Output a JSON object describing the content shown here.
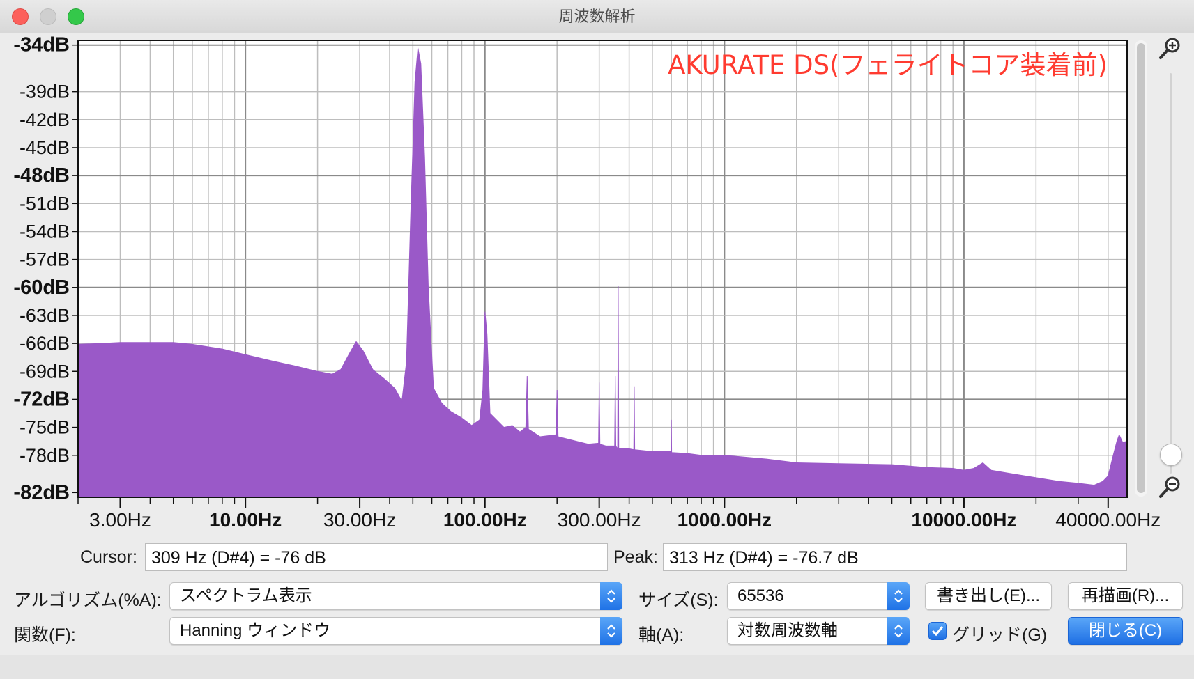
{
  "window": {
    "title": "周波数解析"
  },
  "chart_data": {
    "type": "area",
    "title": "AKURATE DS(フェライトコア装着前)",
    "title_color": "#ff3b30",
    "fill_color": "#9a59c8",
    "x_scale": "log",
    "xlim": [
      2.0,
      48000
    ],
    "ylim": [
      -82.5,
      -33.5
    ],
    "y_ticks": [
      {
        "value": -34,
        "label": "-34dB",
        "major": true
      },
      {
        "value": -39,
        "label": "-39dB",
        "major": false
      },
      {
        "value": -42,
        "label": "-42dB",
        "major": false
      },
      {
        "value": -45,
        "label": "-45dB",
        "major": false
      },
      {
        "value": -48,
        "label": "-48dB",
        "major": true
      },
      {
        "value": -51,
        "label": "-51dB",
        "major": false
      },
      {
        "value": -54,
        "label": "-54dB",
        "major": false
      },
      {
        "value": -57,
        "label": "-57dB",
        "major": false
      },
      {
        "value": -60,
        "label": "-60dB",
        "major": true
      },
      {
        "value": -63,
        "label": "-63dB",
        "major": false
      },
      {
        "value": -66,
        "label": "-66dB",
        "major": false
      },
      {
        "value": -69,
        "label": "-69dB",
        "major": false
      },
      {
        "value": -72,
        "label": "-72dB",
        "major": true
      },
      {
        "value": -75,
        "label": "-75dB",
        "major": false
      },
      {
        "value": -78,
        "label": "-78dB",
        "major": false
      },
      {
        "value": -82,
        "label": "-82dB",
        "major": true
      }
    ],
    "x_ticks": [
      {
        "value": 3,
        "label": "3.00Hz",
        "major": false
      },
      {
        "value": 10,
        "label": "10.00Hz",
        "major": true
      },
      {
        "value": 30,
        "label": "30.00Hz",
        "major": false
      },
      {
        "value": 100,
        "label": "100.00Hz",
        "major": true
      },
      {
        "value": 300,
        "label": "300.00Hz",
        "major": false
      },
      {
        "value": 1000,
        "label": "1000.00Hz",
        "major": true
      },
      {
        "value": 10000,
        "label": "10000.00Hz",
        "major": true
      },
      {
        "value": 40000,
        "label": "40000.00Hz",
        "major": false
      }
    ],
    "grid": true,
    "series": [
      {
        "points": [
          [
            2.0,
            -66.1
          ],
          [
            2.5,
            -66.0
          ],
          [
            3.0,
            -65.9
          ],
          [
            4.0,
            -65.9
          ],
          [
            5.0,
            -65.9
          ],
          [
            6.0,
            -66.1
          ],
          [
            8.0,
            -66.6
          ],
          [
            10.0,
            -67.2
          ],
          [
            13.0,
            -67.9
          ],
          [
            16.0,
            -68.4
          ],
          [
            20.0,
            -69.0
          ],
          [
            23.0,
            -69.3
          ],
          [
            25.0,
            -68.8
          ],
          [
            27.0,
            -67.2
          ],
          [
            29.0,
            -65.8
          ],
          [
            31.0,
            -66.8
          ],
          [
            34.0,
            -68.8
          ],
          [
            38.0,
            -69.8
          ],
          [
            42.0,
            -70.8
          ],
          [
            45.0,
            -72.2
          ],
          [
            47.0,
            -68.0
          ],
          [
            49.0,
            -52.0
          ],
          [
            51.0,
            -38.0
          ],
          [
            52.5,
            -34.3
          ],
          [
            54.0,
            -36.0
          ],
          [
            56.0,
            -46.0
          ],
          [
            58.0,
            -60.0
          ],
          [
            61.0,
            -70.8
          ],
          [
            66.0,
            -72.4
          ],
          [
            72.0,
            -73.3
          ],
          [
            80.0,
            -74.0
          ],
          [
            88.0,
            -74.8
          ],
          [
            95.0,
            -74.2
          ],
          [
            98.0,
            -71.0
          ],
          [
            100.0,
            -62.6
          ],
          [
            102.0,
            -65.0
          ],
          [
            105.0,
            -73.5
          ],
          [
            120.0,
            -75.0
          ],
          [
            130.0,
            -74.8
          ],
          [
            140.0,
            -75.5
          ],
          [
            148.0,
            -75.0
          ],
          [
            150.0,
            -69.5
          ],
          [
            152.0,
            -75.2
          ],
          [
            170.0,
            -76.0
          ],
          [
            198.0,
            -75.8
          ],
          [
            200.0,
            -71.0
          ],
          [
            202.0,
            -76.0
          ],
          [
            250.0,
            -76.6
          ],
          [
            270.0,
            -76.8
          ],
          [
            298.0,
            -76.7
          ],
          [
            300.0,
            -70.2
          ],
          [
            302.0,
            -76.8
          ],
          [
            320.0,
            -77.0
          ],
          [
            348.0,
            -77.0
          ],
          [
            350.0,
            -69.5
          ],
          [
            352.0,
            -77.0
          ],
          [
            358.0,
            -77.3
          ],
          [
            360.0,
            -59.8
          ],
          [
            362.0,
            -77.3
          ],
          [
            400.0,
            -77.3
          ],
          [
            418.0,
            -77.4
          ],
          [
            420.0,
            -70.6
          ],
          [
            422.0,
            -77.4
          ],
          [
            500.0,
            -77.6
          ],
          [
            598.0,
            -77.6
          ],
          [
            600.0,
            -74.2
          ],
          [
            602.0,
            -77.7
          ],
          [
            700.0,
            -77.8
          ],
          [
            800.0,
            -78.0
          ],
          [
            1000.0,
            -78.0
          ],
          [
            1500.0,
            -78.4
          ],
          [
            2000.0,
            -78.8
          ],
          [
            3000.0,
            -78.9
          ],
          [
            5000.0,
            -79.0
          ],
          [
            7000.0,
            -79.3
          ],
          [
            9000.0,
            -79.4
          ],
          [
            10000.0,
            -79.6
          ],
          [
            11000.0,
            -79.4
          ],
          [
            12000.0,
            -78.8
          ],
          [
            13000.0,
            -79.6
          ],
          [
            16000.0,
            -80.0
          ],
          [
            20000.0,
            -80.4
          ],
          [
            25000.0,
            -80.8
          ],
          [
            30000.0,
            -81.0
          ],
          [
            35000.0,
            -81.2
          ],
          [
            38000.0,
            -80.8
          ],
          [
            40000.0,
            -80.2
          ],
          [
            42000.0,
            -78.0
          ],
          [
            43500.0,
            -76.5
          ],
          [
            44500.0,
            -75.8
          ],
          [
            46000.0,
            -76.6
          ],
          [
            48000.0,
            -76.5
          ]
        ]
      }
    ]
  },
  "readout": {
    "cursor_label": "Cursor:",
    "cursor_value": "309 Hz (D#4) = -76 dB",
    "peak_label": "Peak:",
    "peak_value": "313 Hz (D#4) = -76.7 dB"
  },
  "controls": {
    "algorithm_label": "アルゴリズム(%A):",
    "algorithm_value": "スペクトラム表示",
    "size_label": "サイズ(S):",
    "size_value": "65536",
    "export_button": "書き出し(E)...",
    "replot_button": "再描画(R)...",
    "function_label": "関数(F):",
    "function_value": "Hanning ウィンドウ",
    "axis_label": "軸(A):",
    "axis_value": "対数周波数軸",
    "grid_checkbox_label": "グリッド(G)",
    "grid_checked": true,
    "close_button": "閉じる(C)"
  }
}
